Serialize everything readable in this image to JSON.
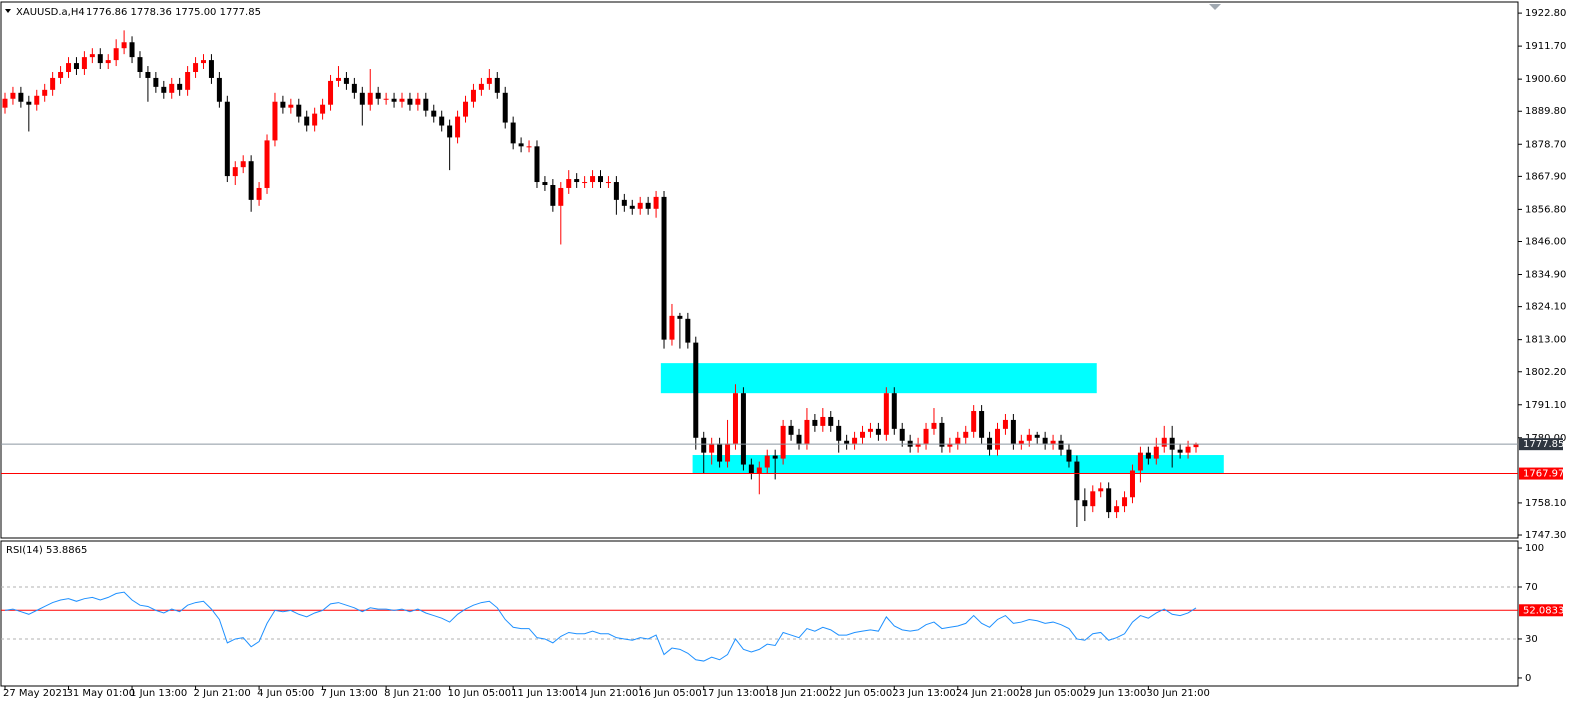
{
  "chart_data": {
    "type": "candlestick",
    "title": "XAUUSD.a,H4",
    "subtitle": "1776.86 1778.36 1775.00 1777.85",
    "categories": [
      "27 May 2021",
      null,
      null,
      null,
      null,
      null,
      null,
      null,
      "31 May 01:00",
      null,
      null,
      null,
      null,
      null,
      null,
      null,
      "1 Jun 13:00",
      null,
      null,
      null,
      null,
      null,
      null,
      null,
      "2 Jun 21:00",
      null,
      null,
      null,
      null,
      null,
      null,
      null,
      "4 Jun 05:00",
      null,
      null,
      null,
      null,
      null,
      null,
      null,
      "7 Jun 13:00",
      null,
      null,
      null,
      null,
      null,
      null,
      null,
      "8 Jun 21:00",
      null,
      null,
      null,
      null,
      null,
      null,
      null,
      "10 Jun 05:00",
      null,
      null,
      null,
      null,
      null,
      null,
      null,
      "11 Jun 13:00",
      null,
      null,
      null,
      null,
      null,
      null,
      null,
      "14 Jun 21:00",
      null,
      null,
      null,
      null,
      null,
      null,
      null,
      "16 Jun 05:00",
      null,
      null,
      null,
      null,
      null,
      null,
      null,
      "17 Jun 13:00",
      null,
      null,
      null,
      null,
      null,
      null,
      null,
      "18 Jun 21:00",
      null,
      null,
      null,
      null,
      null,
      null,
      null,
      "22 Jun 05:00",
      null,
      null,
      null,
      null,
      null,
      null,
      null,
      "23 Jun 13:00",
      null,
      null,
      null,
      null,
      null,
      null,
      null,
      "24 Jun 21:00",
      null,
      null,
      null,
      null,
      null,
      null,
      null,
      "28 Jun 05:00",
      null,
      null,
      null,
      null,
      null,
      null,
      null,
      "29 Jun 13:00",
      null,
      null,
      null,
      null,
      null,
      null,
      null,
      "30 Jun 21:00",
      null,
      null,
      null,
      null,
      null,
      null
    ],
    "open": [
      1891,
      1894,
      1896,
      1893,
      1892,
      1895,
      1897,
      1901,
      1903,
      1906,
      1904,
      1908,
      1909,
      1906,
      1907,
      1911,
      1913,
      1908,
      1903,
      1901,
      1898,
      1896,
      1899,
      1897,
      1903,
      1906,
      1907,
      1901,
      1893,
      1868,
      1871,
      1873,
      1860,
      1864,
      1880,
      1893,
      1891,
      1892,
      1888,
      1885,
      1889,
      1892,
      1900,
      1901,
      1899,
      1896,
      1892,
      1896,
      1894,
      1894,
      1893,
      1894,
      1892,
      1894,
      1890,
      1888,
      1885,
      1881,
      1888,
      1893,
      1897,
      1899,
      1901,
      1896,
      1886,
      1879,
      1878,
      1878,
      1866,
      1865,
      1858,
      1864,
      1867,
      1866,
      1866,
      1868,
      1866,
      1866,
      1860,
      1858,
      1857,
      1859,
      1857,
      1861,
      1813,
      1821,
      1820,
      1812,
      1780,
      1775,
      1778,
      1772,
      1778,
      1795,
      1771,
      1768,
      1770,
      1774,
      1773,
      1784,
      1781,
      1778,
      1786,
      1784,
      1787,
      1784,
      1779,
      1778,
      1780,
      1782,
      1783,
      1781,
      1795,
      1783,
      1779,
      1777,
      1778,
      1783,
      1785,
      1777,
      1778,
      1780,
      1782,
      1789,
      1780,
      1776,
      1783,
      1786,
      1778,
      1779,
      1781,
      1780,
      1778,
      1779,
      1776,
      1772,
      1759,
      1757,
      1762,
      1763,
      1755,
      1757,
      1760,
      1769,
      1775,
      1773,
      1777,
      1780,
      1776,
      1775,
      1776.86
    ],
    "high": [
      1896,
      1898,
      1898,
      1895,
      1897,
      1899,
      1903,
      1905,
      1908,
      1908,
      1910,
      1911,
      1911,
      1909,
      1914,
      1917,
      1915,
      1910,
      1905,
      1903,
      1900,
      1901,
      1901,
      1905,
      1908,
      1909,
      1909,
      1903,
      1895,
      1873,
      1875,
      1875,
      1866,
      1882,
      1896,
      1895,
      1894,
      1894,
      1890,
      1891,
      1894,
      1902,
      1905,
      1903,
      1901,
      1898,
      1904,
      1898,
      1896,
      1896,
      1896,
      1896,
      1896,
      1896,
      1892,
      1890,
      1887,
      1890,
      1895,
      1899,
      1901,
      1904,
      1903,
      1898,
      1888,
      1881,
      1880,
      1880,
      1868,
      1867,
      1866,
      1870,
      1869,
      1868,
      1870,
      1870,
      1868,
      1868,
      1862,
      1860,
      1861,
      1861,
      1863,
      1863,
      1825,
      1822,
      1822,
      1814,
      1782,
      1780,
      1780,
      1786,
      1798,
      1797,
      1773,
      1772,
      1776,
      1776,
      1786,
      1786,
      1783,
      1790,
      1788,
      1790,
      1789,
      1786,
      1781,
      1782,
      1784,
      1785,
      1785,
      1797,
      1797,
      1785,
      1781,
      1780,
      1785,
      1790,
      1787,
      1780,
      1782,
      1784,
      1791,
      1791,
      1782,
      1785,
      1788,
      1788,
      1781,
      1783,
      1782,
      1782,
      1781,
      1781,
      1778,
      1774,
      1763,
      1764,
      1765,
      1765,
      1759,
      1762,
      1771,
      1777,
      1777,
      1780,
      1784,
      1784,
      1778,
      1779,
      1778.36
    ],
    "low": [
      1889,
      1892,
      1891,
      1883,
      1890,
      1893,
      1895,
      1899,
      1901,
      1902,
      1902,
      1906,
      1904,
      1904,
      1905,
      1909,
      1906,
      1901,
      1893,
      1896,
      1894,
      1894,
      1895,
      1895,
      1901,
      1904,
      1899,
      1891,
      1866,
      1865,
      1869,
      1856,
      1858,
      1862,
      1878,
      1889,
      1889,
      1886,
      1883,
      1883,
      1887,
      1890,
      1898,
      1897,
      1894,
      1885,
      1890,
      1892,
      1892,
      1891,
      1891,
      1890,
      1890,
      1888,
      1886,
      1883,
      1870,
      1879,
      1886,
      1891,
      1895,
      1897,
      1894,
      1884,
      1877,
      1876,
      1876,
      1864,
      1863,
      1856,
      1845,
      1862,
      1864,
      1864,
      1864,
      1864,
      1864,
      1855,
      1856,
      1855,
      1855,
      1855,
      1854,
      1810,
      1811,
      1810,
      1810,
      1776,
      1768,
      1771,
      1770,
      1770,
      1776,
      1769,
      1766,
      1761,
      1768,
      1766,
      1771,
      1779,
      1776,
      1776,
      1782,
      1782,
      1782,
      1775,
      1776,
      1776,
      1778,
      1780,
      1779,
      1779,
      1781,
      1777,
      1775,
      1775,
      1776,
      1781,
      1775,
      1775,
      1776,
      1778,
      1780,
      1778,
      1774,
      1774,
      1781,
      1776,
      1776,
      1777,
      1778,
      1776,
      1776,
      1774,
      1770,
      1750,
      1752,
      1755,
      1760,
      1753,
      1753,
      1755,
      1758,
      1765,
      1771,
      1771,
      1775,
      1770,
      1773,
      1773,
      1775
    ],
    "close": [
      1894,
      1896,
      1893,
      1892,
      1895,
      1897,
      1901,
      1903,
      1906,
      1904,
      1908,
      1909,
      1906,
      1907,
      1911,
      1913,
      1908,
      1903,
      1901,
      1898,
      1896,
      1899,
      1897,
      1903,
      1906,
      1907,
      1901,
      1893,
      1868,
      1871,
      1873,
      1860,
      1864,
      1880,
      1893,
      1891,
      1892,
      1888,
      1885,
      1889,
      1892,
      1900,
      1901,
      1899,
      1896,
      1892,
      1896,
      1894,
      1894,
      1893,
      1894,
      1892,
      1894,
      1890,
      1888,
      1885,
      1881,
      1888,
      1893,
      1897,
      1899,
      1901,
      1896,
      1886,
      1879,
      1878,
      1878,
      1866,
      1865,
      1858,
      1864,
      1867,
      1866,
      1866,
      1868,
      1866,
      1866,
      1860,
      1858,
      1857,
      1859,
      1857,
      1861,
      1813,
      1821,
      1820,
      1812,
      1780,
      1775,
      1778,
      1772,
      1778,
      1795,
      1771,
      1768,
      1770,
      1774,
      1773,
      1784,
      1781,
      1778,
      1786,
      1784,
      1787,
      1784,
      1779,
      1778,
      1780,
      1782,
      1783,
      1781,
      1795,
      1783,
      1779,
      1777,
      1778,
      1783,
      1785,
      1777,
      1778,
      1780,
      1782,
      1789,
      1780,
      1776,
      1783,
      1786,
      1778,
      1779,
      1781,
      1780,
      1778,
      1779,
      1776,
      1772,
      1759,
      1757,
      1762,
      1763,
      1755,
      1757,
      1760,
      1769,
      1775,
      1773,
      1777,
      1780,
      1776,
      1775,
      1777,
      1777.85
    ],
    "up_color": "#ff0000",
    "down_color": "#000000",
    "ylim": [
      1746.3,
      1926.2
    ],
    "yticks": [
      {
        "value": 1922.8,
        "label": "1922.80"
      },
      {
        "value": 1911.7,
        "label": "1911.70"
      },
      {
        "value": 1900.6,
        "label": "1900.60"
      },
      {
        "value": 1889.8,
        "label": "1889.80"
      },
      {
        "value": 1878.7,
        "label": "1878.70"
      },
      {
        "value": 1867.9,
        "label": "1867.90"
      },
      {
        "value": 1856.8,
        "label": "1856.80"
      },
      {
        "value": 1846,
        "label": "1846.00"
      },
      {
        "value": 1834.9,
        "label": "1834.90"
      },
      {
        "value": 1824.1,
        "label": "1824.10"
      },
      {
        "value": 1813,
        "label": "1813.00"
      },
      {
        "value": 1802.2,
        "label": "1802.20"
      },
      {
        "value": 1791.1,
        "label": "1791.10"
      },
      {
        "value": 1780,
        "label": "1780.00"
      },
      {
        "value": 1758.1,
        "label": "1758.10"
      },
      {
        "value": 1747.3,
        "label": "1747.30"
      }
    ],
    "price_lines": [
      {
        "value": 1777.85,
        "color": "#8c96a0",
        "label_color": "#2f3640"
      },
      {
        "value": 1767.97,
        "color": "#ff0000",
        "label_color": "#ff0000"
      }
    ],
    "zones": [
      {
        "from": 1795.0,
        "to": 1805.1,
        "x_start": 82.6,
        "x_end": 137.5,
        "color": "#00ffff"
      },
      {
        "from": 1767.9,
        "to": 1774.2,
        "x_start": 86.6,
        "x_end": 153.5,
        "color": "#00ffff"
      }
    ],
    "indicator": {
      "type": "line",
      "title": "RSI(14) 53.8865",
      "color": "#1e90ff",
      "ylim": [
        -6.2,
        105.4
      ],
      "yticks": [
        100,
        70,
        30,
        0
      ],
      "levels": [
        70,
        30
      ],
      "level": {
        "value": 52.0833,
        "color": "#ff0000"
      },
      "values": [
        52,
        53,
        51,
        49,
        52,
        55,
        58,
        60,
        61,
        59,
        61,
        62,
        60,
        62,
        65,
        66,
        60,
        56,
        55,
        52,
        50,
        53,
        51,
        56,
        58,
        59,
        53,
        45,
        27,
        30,
        31,
        24,
        28,
        42,
        52,
        51,
        52,
        49,
        47,
        50,
        52,
        57,
        58,
        56,
        54,
        51,
        54,
        53,
        53,
        52,
        53,
        51,
        53,
        50,
        48,
        46,
        43,
        49,
        53,
        56,
        58,
        59,
        54,
        45,
        39,
        38,
        38,
        31,
        30,
        27,
        32,
        35,
        34,
        34,
        36,
        34,
        34,
        31,
        30,
        29,
        31,
        30,
        33,
        18,
        23,
        22,
        19,
        14,
        13,
        16,
        14,
        18,
        30,
        22,
        20,
        22,
        26,
        25,
        35,
        33,
        31,
        38,
        36,
        39,
        37,
        33,
        33,
        35,
        36,
        37,
        36,
        47,
        40,
        37,
        36,
        37,
        41,
        43,
        38,
        39,
        40,
        42,
        48,
        42,
        39,
        45,
        48,
        42,
        43,
        45,
        44,
        42,
        43,
        41,
        38,
        30,
        29,
        34,
        35,
        29,
        31,
        34,
        43,
        48,
        46,
        50,
        53,
        49,
        48,
        50,
        53.8865
      ]
    }
  }
}
